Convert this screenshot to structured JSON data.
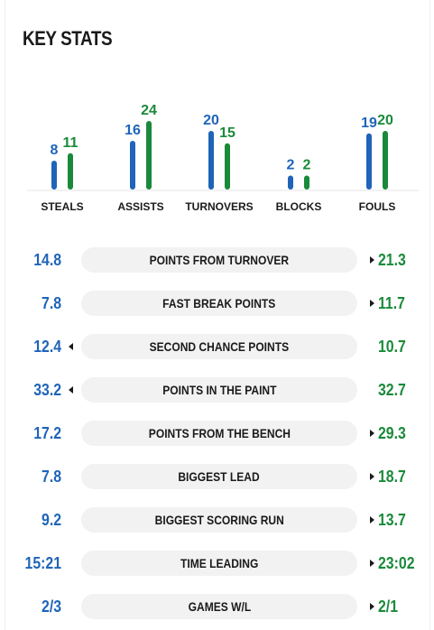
{
  "title": "KEY STATS",
  "colors": {
    "home": "#1f64b8",
    "away": "#1a8a3a",
    "text": "#1a1a1a",
    "pill": "#f2f2f2"
  },
  "chart_data": {
    "type": "bar",
    "categories": [
      "STEALS",
      "ASSISTS",
      "TURNOVERS",
      "BLOCKS",
      "FOULS"
    ],
    "series": [
      {
        "values": [
          8,
          16,
          20,
          2,
          19
        ],
        "color": "#1f64b8"
      },
      {
        "values": [
          11,
          24,
          15,
          2,
          20
        ],
        "color": "#1a8a3a"
      }
    ]
  },
  "rows": [
    {
      "label": "POINTS FROM TURNOVER",
      "left": "14.8",
      "right": "21.3",
      "leader": "right"
    },
    {
      "label": "FAST BREAK POINTS",
      "left": "7.8",
      "right": "11.7",
      "leader": "right"
    },
    {
      "label": "SECOND CHANCE POINTS",
      "left": "12.4",
      "right": "10.7",
      "leader": "left"
    },
    {
      "label": "POINTS IN THE PAINT",
      "left": "33.2",
      "right": "32.7",
      "leader": "left"
    },
    {
      "label": "POINTS FROM THE BENCH",
      "left": "17.2",
      "right": "29.3",
      "leader": "right"
    },
    {
      "label": "BIGGEST LEAD",
      "left": "7.8",
      "right": "18.7",
      "leader": "right"
    },
    {
      "label": "BIGGEST SCORING RUN",
      "left": "9.2",
      "right": "13.7",
      "leader": "right"
    },
    {
      "label": "TIME LEADING",
      "left": "15:21",
      "right": "23:02",
      "leader": "right"
    },
    {
      "label": "GAMES W/L",
      "left": "2/3",
      "right": "2/1",
      "leader": "right"
    }
  ]
}
